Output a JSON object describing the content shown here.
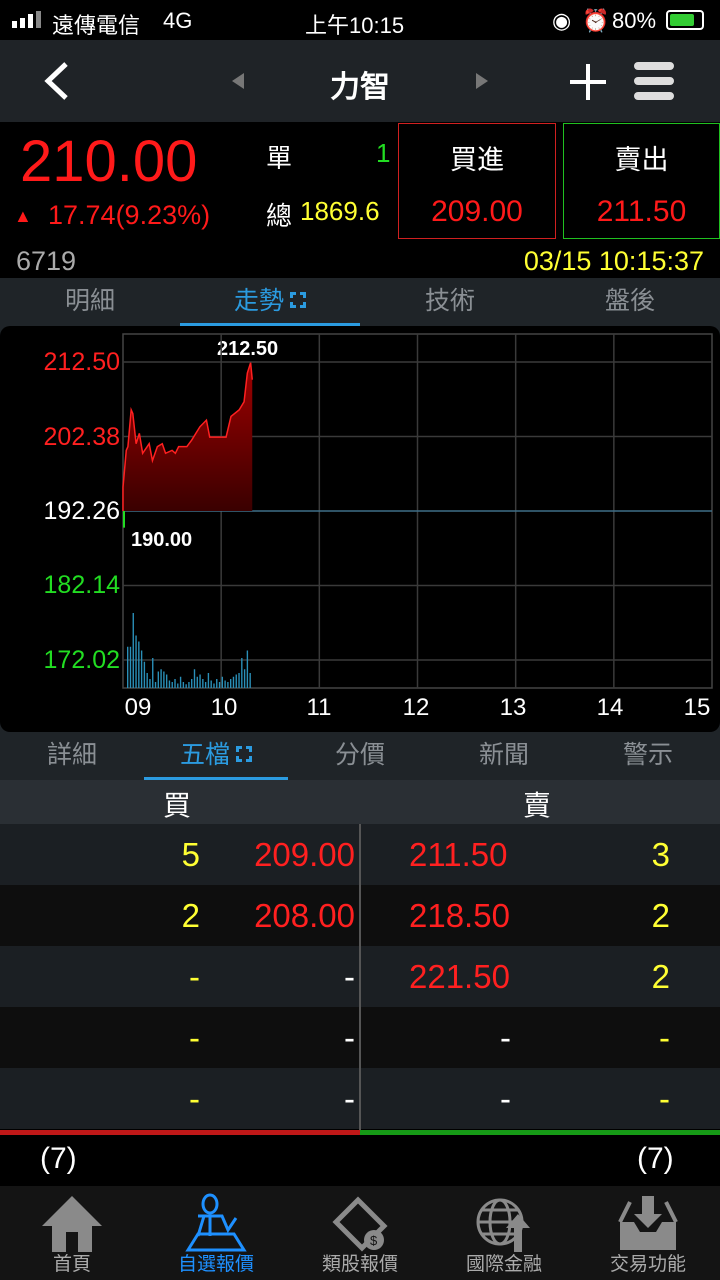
{
  "status_bar": {
    "carrier": "遠傳電信",
    "network": "4G",
    "time": "上午10:15",
    "battery": "80%"
  },
  "nav": {
    "title": "力智",
    "back_icon": "chevron-left-icon",
    "prev_icon": "triangle-left-icon",
    "next_icon": "triangle-right-icon",
    "add_icon": "plus-icon",
    "menu_icon": "hamburger-icon"
  },
  "quote": {
    "price": "210.00",
    "change": "17.74(9.23%)",
    "direction": "up",
    "single_label": "單",
    "single_value": "1",
    "total_label": "總",
    "total_value": "1869.6",
    "buy_label": "買進",
    "buy_price": "209.00",
    "sell_label": "賣出",
    "sell_price": "211.50",
    "code": "6719",
    "datetime": "03/15 10:15:37"
  },
  "tabs1": [
    {
      "label": "明細"
    },
    {
      "label": "走勢",
      "active": true
    },
    {
      "label": "技術"
    },
    {
      "label": "盤後"
    }
  ],
  "chart_data": {
    "type": "line",
    "y_ticks": [
      "212.50",
      "202.38",
      "192.26",
      "182.14",
      "172.02"
    ],
    "ylim": [
      172.02,
      212.5
    ],
    "reference_price": 192.26,
    "x_ticks": [
      "09",
      "10",
      "11",
      "12",
      "13",
      "14",
      "15"
    ],
    "high_label": "212.50",
    "low_label": "190.00",
    "grid": true,
    "colors": {
      "up": "#ff2020",
      "down": "#22dd22",
      "reference": "#ffffff",
      "volume": "#2a8fb8"
    },
    "price_series": [
      [
        "09:00",
        192.26
      ],
      [
        "09:00",
        195.5
      ],
      [
        "09:02",
        200.5
      ],
      [
        "09:03",
        201.0
      ],
      [
        "09:05",
        206.0
      ],
      [
        "09:06",
        205.5
      ],
      [
        "09:08",
        201.4
      ],
      [
        "09:10",
        202.8
      ],
      [
        "09:12",
        200.1
      ],
      [
        "09:16",
        201.4
      ],
      [
        "09:18",
        199.1
      ],
      [
        "09:21",
        201.0
      ],
      [
        "09:24",
        201.4
      ],
      [
        "09:26",
        200.1
      ],
      [
        "09:30",
        200.5
      ],
      [
        "09:32",
        200.1
      ],
      [
        "09:34",
        201.0
      ],
      [
        "09:39",
        201.0
      ],
      [
        "09:42",
        201.9
      ],
      [
        "09:47",
        203.7
      ],
      [
        "09:51",
        204.6
      ],
      [
        "09:53",
        202.3
      ],
      [
        "09:56",
        202.3
      ],
      [
        "10:00",
        202.3
      ],
      [
        "10:03",
        202.3
      ],
      [
        "10:06",
        205.1
      ],
      [
        "10:11",
        206.0
      ],
      [
        "10:14",
        207.1
      ],
      [
        "10:16",
        211.0
      ],
      [
        "10:18",
        212.4
      ],
      [
        "10:19",
        210.1
      ]
    ],
    "volume_relative": [
      55,
      55,
      100,
      70,
      62,
      50,
      35,
      20,
      12,
      40,
      8,
      22,
      25,
      22,
      18,
      10,
      8,
      12,
      6,
      15,
      8,
      5,
      8,
      12,
      25,
      15,
      18,
      12,
      8,
      20,
      10,
      6,
      12,
      8,
      15,
      10,
      8,
      12,
      15,
      18,
      20,
      40,
      25,
      50,
      20
    ]
  },
  "tabs2": [
    {
      "label": "詳細"
    },
    {
      "label": "五檔",
      "active": true
    },
    {
      "label": "分價"
    },
    {
      "label": "新聞"
    },
    {
      "label": "警示"
    }
  ],
  "book": {
    "buy_header": "買",
    "sell_header": "賣",
    "rows": [
      {
        "bid_qty": "5",
        "bid": "209.00",
        "ask": "211.50",
        "ask_qty": "3"
      },
      {
        "bid_qty": "2",
        "bid": "208.00",
        "ask": "218.50",
        "ask_qty": "2"
      },
      {
        "bid_qty": "-",
        "bid": "-",
        "ask": "221.50",
        "ask_qty": "2"
      },
      {
        "bid_qty": "-",
        "bid": "-",
        "ask": "-",
        "ask_qty": "-"
      },
      {
        "bid_qty": "-",
        "bid": "-",
        "ask": "-",
        "ask_qty": "-"
      }
    ],
    "buy_total": "(7)",
    "sell_total": "(7)",
    "buy_ratio": 0.5
  },
  "bottom_nav": [
    {
      "label": "首頁",
      "icon": "home-icon"
    },
    {
      "label": "自選報價",
      "icon": "person-desk-icon",
      "active": true
    },
    {
      "label": "類股報價",
      "icon": "film-coin-icon"
    },
    {
      "label": "國際金融",
      "icon": "globe-arrow-icon"
    },
    {
      "label": "交易功能",
      "icon": "inbox-download-icon"
    }
  ]
}
